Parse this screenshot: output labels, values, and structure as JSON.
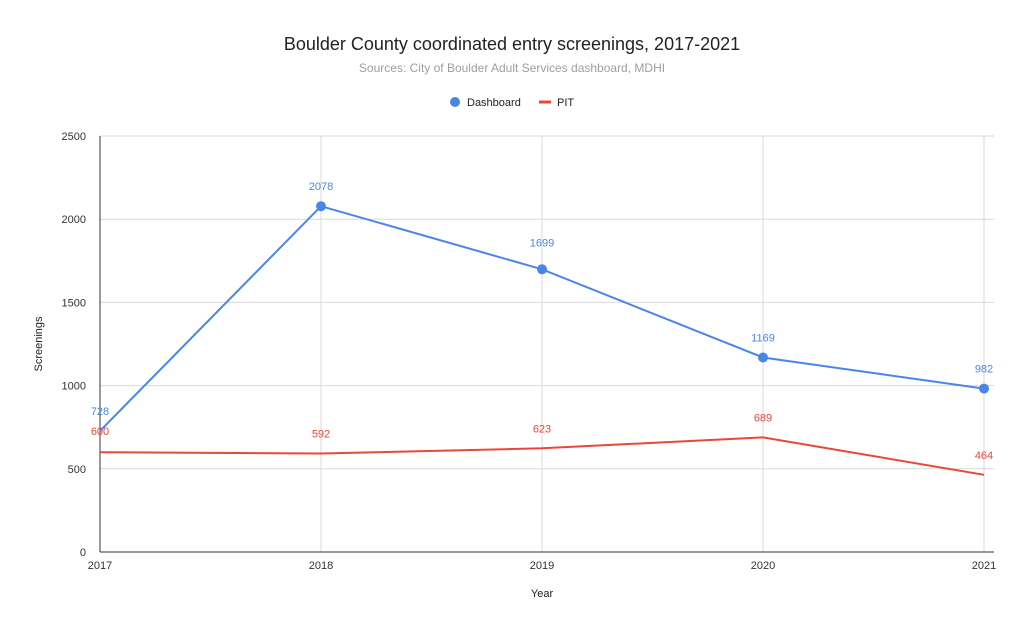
{
  "chart_data": {
    "type": "line",
    "title": "Boulder County coordinated entry screenings, 2017-2021",
    "subtitle": "Sources: City of Boulder Adult Services dashboard, MDHI",
    "xlabel": "Year",
    "ylabel": "Screenings",
    "categories": [
      "2017",
      "2018",
      "2019",
      "2020",
      "2021"
    ],
    "ylim": [
      0,
      2500
    ],
    "yticks": [
      "0",
      "500",
      "1000",
      "1500",
      "2000",
      "2500"
    ],
    "grid": true,
    "legend_position": "top",
    "series": [
      {
        "name": "Dashboard",
        "values": [
          728,
          2078,
          1699,
          1169,
          982
        ],
        "labels": [
          "728",
          "2078",
          "1699",
          "1169",
          "982"
        ],
        "color": "#4a86e8",
        "markers": true
      },
      {
        "name": "PIT",
        "values": [
          600,
          592,
          623,
          689,
          464
        ],
        "labels": [
          "600",
          "592",
          "623",
          "689",
          "464"
        ],
        "color": "#e8473a",
        "markers": false
      }
    ]
  }
}
